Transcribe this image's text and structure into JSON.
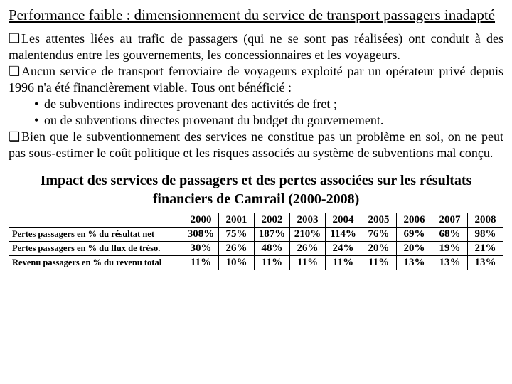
{
  "title": "Performance faible : dimensionnement du service de transport passagers inadapté",
  "bullets": {
    "b1": "Les attentes liées au trafic de passagers (qui ne se sont pas réalisées) ont conduit à des malentendus entre les gouvernements, les concessionnaires et les voyageurs.",
    "b2": "Aucun service de transport ferroviaire de voyageurs exploité par un opérateur privé depuis 1996 n'a été financièrement viable. Tous ont bénéficié :",
    "b2s1": "de subventions indirectes provenant des activités de fret ;",
    "b2s2": "ou de subventions directes provenant du budget du gouvernement.",
    "b3": "Bien que le subventionnement des services ne constitue pas un problème en soi, on ne peut pas sous-estimer le coût politique et les risques associés au système de subventions mal conçu."
  },
  "section_title": "Impact des services de passagers et des pertes associées sur les résultats financiers de Camrail (2000-2008)",
  "table": {
    "years": [
      "2000",
      "2001",
      "2002",
      "2003",
      "2004",
      "2005",
      "2006",
      "2007",
      "2008"
    ],
    "rows": [
      {
        "label": "Pertes passagers en % du résultat net",
        "vals": [
          "308%",
          "75%",
          "187%",
          "210%",
          "114%",
          "76%",
          "69%",
          "68%",
          "98%"
        ]
      },
      {
        "label": "Pertes passagers en % du flux de tréso.",
        "vals": [
          "30%",
          "26%",
          "48%",
          "26%",
          "24%",
          "20%",
          "20%",
          "19%",
          "21%"
        ]
      },
      {
        "label": "Revenu passagers en % du revenu total",
        "vals": [
          "11%",
          "10%",
          "11%",
          "11%",
          "11%",
          "11%",
          "13%",
          "13%",
          "13%"
        ]
      }
    ]
  },
  "style": {
    "font_family": "Times New Roman",
    "title_fontsize": 21,
    "body_fontsize": 18,
    "section_title_fontsize": 20,
    "table_fontsize": 15,
    "row_label_fontsize": 12.5,
    "text_color": "#000000",
    "background_color": "#ffffff",
    "border_color": "#000000"
  }
}
